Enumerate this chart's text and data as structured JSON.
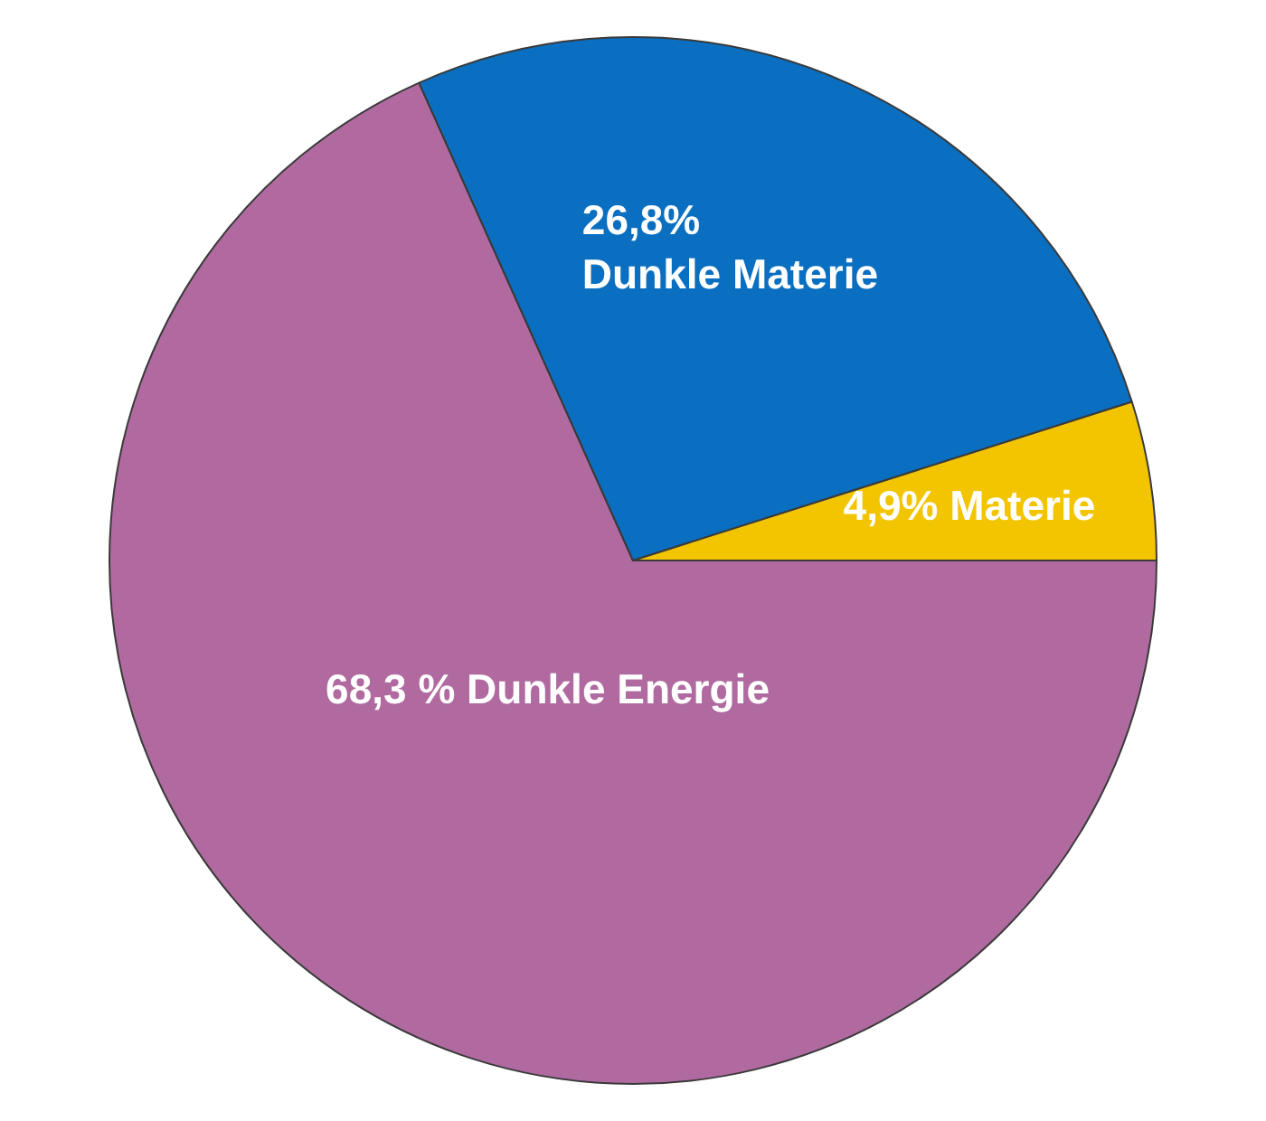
{
  "chart_data": {
    "type": "pie",
    "categories": [
      "Dunkle Energie",
      "Dunkle Materie",
      "Materie"
    ],
    "values": [
      68.3,
      26.8,
      4.9
    ],
    "value_labels": [
      "68,3 %",
      "26,8%",
      "4,9%"
    ],
    "colors": [
      "#b06aa0",
      "#0a6fc0",
      "#f2c500"
    ],
    "legend": false
  }
}
